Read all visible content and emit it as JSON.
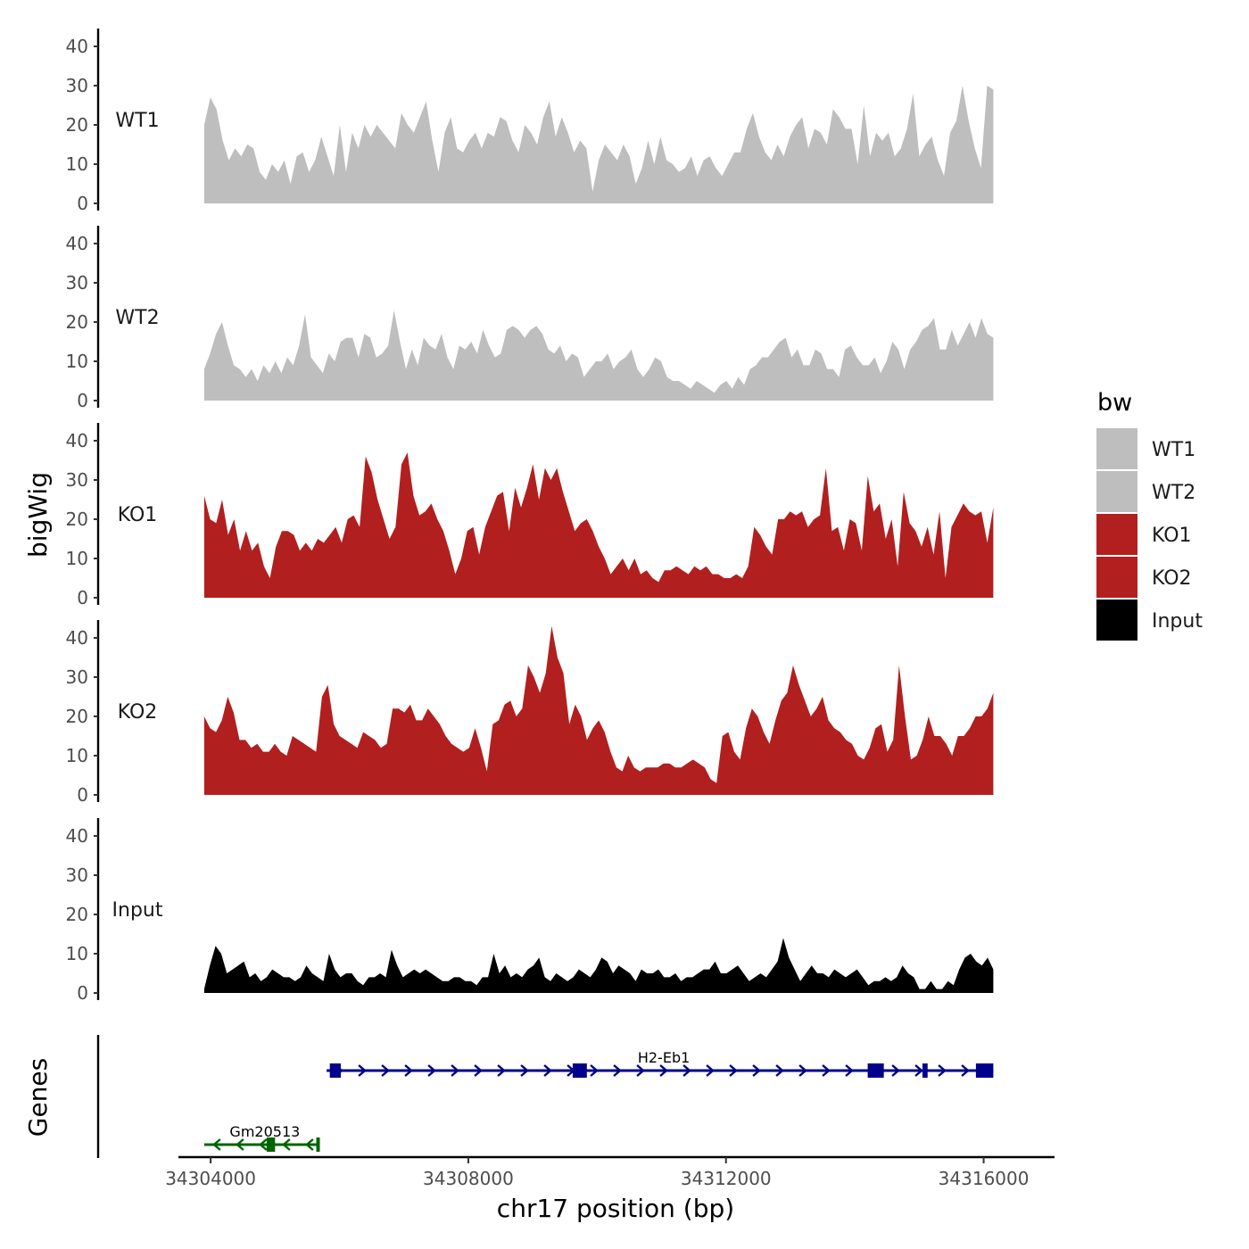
{
  "chart_data": {
    "type": "area",
    "title": "",
    "xlabel": "chr17 position (bp)",
    "ylabel": "bigWig",
    "genes_label": "Genes",
    "xlim": [
      34303500,
      34317100
    ],
    "ylim": [
      0,
      45
    ],
    "x_ticks": [
      34304000,
      34308000,
      34312000,
      34316000
    ],
    "x_tick_labels": [
      "34304000",
      "34308000",
      "34312000",
      "34316000"
    ],
    "y_ticks": [
      0,
      10,
      20,
      30,
      40
    ],
    "y_tick_labels": [
      "0",
      "10",
      "20",
      "30",
      "40"
    ],
    "x_start": 34303900,
    "x_end": 34316150,
    "legend": {
      "title": "bw",
      "entries": [
        {
          "label": "WT1",
          "color": "#bebebe"
        },
        {
          "label": "WT2",
          "color": "#bebebe"
        },
        {
          "label": "KO1",
          "color": "#b21f1f"
        },
        {
          "label": "KO2",
          "color": "#b21f1f"
        },
        {
          "label": "Input",
          "color": "#000000"
        }
      ]
    },
    "series": [
      {
        "name": "WT1",
        "color": "#bebebe",
        "values": [
          20,
          27,
          24,
          16,
          11,
          14,
          12,
          15,
          14,
          8,
          6,
          10,
          8,
          11,
          5,
          12,
          13,
          8,
          11,
          17,
          12,
          7,
          20,
          8,
          18,
          14,
          20,
          17,
          20,
          18,
          16,
          14,
          23,
          20,
          18,
          22,
          26,
          16,
          8,
          18,
          22,
          14,
          13,
          16,
          18,
          14,
          18,
          17,
          22,
          21,
          16,
          13,
          20,
          18,
          15,
          22,
          26,
          17,
          22,
          18,
          13,
          16,
          14,
          3,
          11,
          15,
          13,
          11,
          15,
          12,
          5,
          9,
          16,
          10,
          17,
          11,
          10,
          8,
          9,
          12,
          7,
          11,
          12,
          9,
          7,
          10,
          13,
          13,
          19,
          23,
          17,
          13,
          11,
          15,
          12,
          17,
          20,
          22,
          14,
          19,
          18,
          15,
          24,
          22,
          19,
          19,
          10,
          25,
          12,
          18,
          16,
          18,
          12,
          14,
          19,
          28,
          12,
          15,
          17,
          11,
          7,
          18,
          21,
          30,
          21,
          14,
          9,
          30,
          29
        ]
      },
      {
        "name": "WT2",
        "color": "#bebebe",
        "values": [
          8,
          12,
          17,
          20,
          14,
          9,
          8,
          6,
          8,
          5,
          9,
          7,
          10,
          7,
          11,
          9,
          14,
          22,
          11,
          9,
          7,
          12,
          10,
          15,
          16,
          16,
          11,
          17,
          16,
          11,
          12,
          14,
          23,
          15,
          8,
          13,
          9,
          16,
          14,
          13,
          17,
          11,
          8,
          14,
          13,
          15,
          12,
          18,
          14,
          11,
          12,
          18,
          19,
          18,
          16,
          18,
          19,
          17,
          13,
          12,
          14,
          10,
          12,
          11,
          6,
          8,
          10,
          10,
          12,
          8,
          10,
          11,
          13,
          8,
          6,
          8,
          11,
          10,
          6,
          5,
          5,
          4,
          3,
          5,
          4,
          3,
          2,
          4,
          5,
          3,
          6,
          4,
          8,
          9,
          11,
          11,
          13,
          15,
          16,
          11,
          13,
          9,
          9,
          13,
          12,
          8,
          8,
          6,
          13,
          14,
          11,
          9,
          9,
          11,
          7,
          10,
          15,
          13,
          8,
          13,
          15,
          18,
          19,
          21,
          13,
          13,
          18,
          14,
          17,
          20,
          16,
          21,
          17,
          16
        ]
      },
      {
        "name": "KO1",
        "color": "#b21f1f",
        "values": [
          26,
          20,
          19,
          25,
          16,
          20,
          12,
          17,
          12,
          14,
          8,
          5,
          13,
          17,
          17,
          16,
          12,
          14,
          12,
          15,
          14,
          16,
          18,
          14,
          20,
          21,
          18,
          36,
          32,
          25,
          20,
          15,
          18,
          34,
          37,
          26,
          21,
          22,
          24,
          20,
          17,
          12,
          6,
          10,
          17,
          18,
          11,
          18,
          22,
          26,
          27,
          17,
          28,
          23,
          28,
          34,
          25,
          33,
          30,
          33,
          27,
          22,
          17,
          19,
          20,
          17,
          13,
          10,
          6,
          8,
          10,
          7,
          10,
          6,
          7,
          5,
          4,
          7,
          7,
          8,
          7,
          6,
          8,
          7,
          8,
          6,
          6,
          5,
          5,
          6,
          5,
          8,
          18,
          16,
          13,
          11,
          20,
          20,
          22,
          21,
          22,
          18,
          20,
          21,
          33,
          17,
          18,
          12,
          20,
          19,
          12,
          31,
          22,
          24,
          15,
          20,
          8,
          27,
          19,
          17,
          13,
          18,
          11,
          22,
          5,
          18,
          21,
          24,
          22,
          21,
          22,
          14,
          23
        ]
      },
      {
        "name": "KO2",
        "color": "#b21f1f",
        "values": [
          20,
          17,
          16,
          19,
          25,
          21,
          14,
          14,
          12,
          13,
          11,
          11,
          13,
          11,
          10,
          15,
          14,
          13,
          12,
          11,
          25,
          28,
          18,
          15,
          14,
          13,
          12,
          16,
          15,
          14,
          12,
          13,
          22,
          22,
          21,
          23,
          19,
          19,
          22,
          20,
          18,
          15,
          13,
          12,
          11,
          12,
          17,
          12,
          6,
          18,
          19,
          23,
          24,
          20,
          22,
          33,
          30,
          26,
          31,
          43,
          35,
          31,
          18,
          23,
          20,
          14,
          17,
          19,
          16,
          11,
          7,
          6,
          10,
          7,
          6,
          7,
          7,
          7,
          8,
          8,
          7,
          7,
          8,
          9,
          8,
          7,
          4,
          3,
          15,
          16,
          11,
          9,
          17,
          22,
          20,
          16,
          13,
          19,
          24,
          26,
          33,
          28,
          24,
          20,
          22,
          25,
          19,
          17,
          16,
          14,
          13,
          10,
          9,
          12,
          17,
          18,
          11,
          14,
          33,
          20,
          9,
          10,
          14,
          20,
          15,
          15,
          13,
          10,
          15,
          15,
          17,
          20,
          20,
          22,
          26
        ]
      },
      {
        "name": "Input",
        "color": "#000000",
        "values": [
          1,
          7,
          12,
          10,
          5,
          6,
          7,
          8,
          4,
          5,
          3,
          4,
          6,
          5,
          4,
          4,
          3,
          4,
          7,
          5,
          4,
          3,
          10,
          6,
          4,
          5,
          5,
          3,
          2,
          4,
          4,
          5,
          4,
          11,
          7,
          4,
          5,
          6,
          5,
          6,
          5,
          4,
          3,
          3,
          4,
          4,
          3,
          3,
          2,
          4,
          4,
          10,
          5,
          7,
          4,
          5,
          4,
          6,
          7,
          9,
          4,
          3,
          5,
          4,
          3,
          4,
          6,
          5,
          4,
          6,
          9,
          8,
          5,
          7,
          6,
          5,
          3,
          6,
          5,
          5,
          6,
          4,
          4,
          5,
          3,
          4,
          4,
          5,
          6,
          6,
          8,
          5,
          5,
          6,
          7,
          5,
          3,
          4,
          5,
          4,
          6,
          8,
          14,
          9,
          6,
          3,
          5,
          7,
          5,
          5,
          4,
          6,
          5,
          4,
          5,
          6,
          4,
          2,
          3,
          3,
          4,
          3,
          4,
          7,
          5,
          4,
          1,
          1,
          3,
          1,
          1,
          3,
          2,
          6,
          9,
          10,
          8,
          7,
          9,
          6
        ]
      }
    ],
    "genes": [
      {
        "name": "Gm20513",
        "color": "#006400",
        "strand": "-",
        "start": 34303900,
        "end": 34305670,
        "exons": [
          [
            34304870,
            34305000
          ],
          [
            34305640,
            34305670
          ]
        ]
      },
      {
        "name": "H2-Eb1",
        "color": "#00008b",
        "strand": "+",
        "start": 34305800,
        "end": 34316150,
        "exons": [
          [
            34305850,
            34306020
          ],
          [
            34309620,
            34309840
          ],
          [
            34314200,
            34314450
          ],
          [
            34315050,
            34315130
          ],
          [
            34315880,
            34316150
          ]
        ]
      }
    ]
  }
}
